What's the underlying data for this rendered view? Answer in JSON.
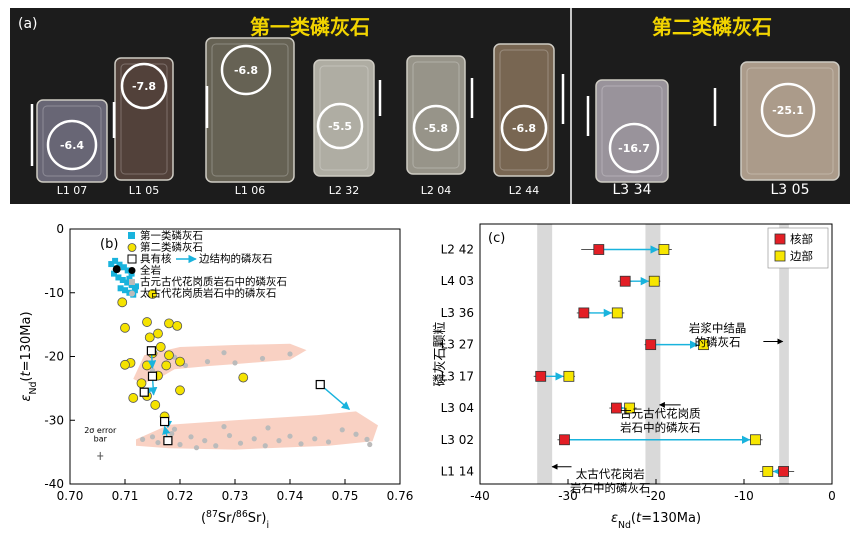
{
  "panel_a": {
    "label": "(a)",
    "group1_title": "第一类磷灰石",
    "group2_title": "第二类磷灰石",
    "group1_color": "#f2d400",
    "group2_color": "#f2d400",
    "grains": [
      {
        "name": "L1 07",
        "value": "-6.4",
        "group": 1
      },
      {
        "name": "L1 05",
        "value": "-7.8",
        "group": 1
      },
      {
        "name": "L1 06",
        "value": "-6.8",
        "group": 1
      },
      {
        "name": "L2 32",
        "value": "-5.5",
        "group": 1
      },
      {
        "name": "L2 04",
        "value": "-5.8",
        "group": 1
      },
      {
        "name": "L2 44",
        "value": "-6.8",
        "group": 1
      },
      {
        "name": "L3 34",
        "value": "-16.7",
        "group": 2
      },
      {
        "name": "L3 05",
        "value": "-25.1",
        "group": 2
      }
    ]
  },
  "chart_data": [
    {
      "panel": "(b)",
      "type": "scatter",
      "xlabel_parts": [
        "(",
        "87",
        "Sr/",
        "86",
        "Sr)",
        "i"
      ],
      "ylabel_parts": [
        "ε",
        "Nd",
        "(",
        "t",
        "=130Ma)"
      ],
      "xlim": [
        0.7,
        0.76
      ],
      "ylim": [
        -40,
        0
      ],
      "xticks": [
        "0.70",
        "0.71",
        "0.72",
        "0.73",
        "0.74",
        "0.75",
        "0.76"
      ],
      "yticks": [
        "0",
        "-10",
        "-20",
        "-30",
        "-40"
      ],
      "legend": [
        "第一类磷灰石",
        "第二类磷灰石",
        "具有核",
        "边结构的磷灰石",
        "全岩",
        "古元古代花岗质岩石中的磷灰石",
        "太古代花岗质岩石中的磷灰石"
      ],
      "colors": {
        "type1": "#19b3dd",
        "type2": "#f5e300",
        "arrow": "#19b3dd",
        "field": "#f7c6b4",
        "grey": "#bbbbbb"
      },
      "error_bar_label": [
        "2σ error",
        "bar"
      ],
      "type1_points": [
        [
          0.7075,
          -5.5
        ],
        [
          0.7082,
          -5.0
        ],
        [
          0.709,
          -5.6
        ],
        [
          0.7098,
          -6.0
        ],
        [
          0.7105,
          -6.5
        ],
        [
          0.7112,
          -7.0
        ],
        [
          0.708,
          -7.0
        ],
        [
          0.7088,
          -7.6
        ],
        [
          0.7096,
          -8.0
        ],
        [
          0.7104,
          -8.4
        ],
        [
          0.7112,
          -8.8
        ],
        [
          0.712,
          -9.0
        ],
        [
          0.7092,
          -9.3
        ],
        [
          0.71,
          -9.6
        ],
        [
          0.7108,
          -10.0
        ],
        [
          0.7115,
          -10.3
        ],
        [
          0.7085,
          -6.2
        ],
        [
          0.7108,
          -7.8
        ],
        [
          0.7118,
          -9.6
        ]
      ],
      "type2_points": [
        [
          0.7095,
          -11.5
        ],
        [
          0.715,
          -10.2
        ],
        [
          0.714,
          -14.6
        ],
        [
          0.71,
          -15.5
        ],
        [
          0.718,
          -14.8
        ],
        [
          0.7195,
          -15.2
        ],
        [
          0.716,
          -16.4
        ],
        [
          0.7145,
          -17.0
        ],
        [
          0.7165,
          -18.5
        ],
        [
          0.718,
          -19.8
        ],
        [
          0.715,
          -19.5
        ],
        [
          0.711,
          -21.0
        ],
        [
          0.71,
          -21.3
        ],
        [
          0.714,
          -21.4
        ],
        [
          0.7175,
          -21.4
        ],
        [
          0.72,
          -20.8
        ],
        [
          0.7315,
          -23.3
        ],
        [
          0.716,
          -23.0
        ],
        [
          0.713,
          -24.2
        ],
        [
          0.72,
          -25.3
        ],
        [
          0.714,
          -26.2
        ],
        [
          0.7115,
          -26.5
        ],
        [
          0.7155,
          -27.6
        ],
        [
          0.7172,
          -29.4
        ]
      ],
      "whole_rock": [
        [
          0.7085,
          -6.3
        ]
      ],
      "core_rim_pairs": [
        {
          "core": [
            0.7148,
            -19.1
          ],
          "rim": [
            0.715,
            -21.8
          ]
        },
        {
          "core": [
            0.715,
            -23.1
          ],
          "rim": [
            0.7152,
            -26.0
          ]
        },
        {
          "core": [
            0.7135,
            -25.6
          ],
          "rim": [
            0.715,
            -25.1
          ]
        },
        {
          "core": [
            0.7172,
            -30.2
          ],
          "rim": [
            0.717,
            -30.1
          ]
        },
        {
          "core": [
            0.7178,
            -33.2
          ],
          "rim": [
            0.7172,
            -31.0
          ]
        },
        {
          "core": [
            0.7455,
            -24.4
          ],
          "rim": [
            0.7508,
            -28.3
          ]
        }
      ],
      "paleo_field": [
        [
          0.7115,
          -23.5
        ],
        [
          0.7135,
          -19.8
        ],
        [
          0.72,
          -18.5
        ],
        [
          0.73,
          -18.2
        ],
        [
          0.74,
          -18.0
        ],
        [
          0.743,
          -19.0
        ],
        [
          0.74,
          -20.5
        ],
        [
          0.73,
          -21.2
        ],
        [
          0.725,
          -21.5
        ],
        [
          0.719,
          -22.0
        ],
        [
          0.716,
          -23.5
        ],
        [
          0.713,
          -24.2
        ]
      ],
      "archean_field": [
        [
          0.712,
          -33.0
        ],
        [
          0.718,
          -30.7
        ],
        [
          0.73,
          -30.0
        ],
        [
          0.745,
          -29.2
        ],
        [
          0.752,
          -28.6
        ],
        [
          0.756,
          -30.8
        ],
        [
          0.755,
          -33.3
        ],
        [
          0.747,
          -34.0
        ],
        [
          0.73,
          -34.6
        ],
        [
          0.718,
          -34.4
        ],
        [
          0.712,
          -34.0
        ]
      ],
      "paleo_points": [
        [
          0.715,
          -22.2
        ],
        [
          0.721,
          -21.4
        ],
        [
          0.725,
          -20.8
        ],
        [
          0.73,
          -21.0
        ],
        [
          0.735,
          -20.3
        ],
        [
          0.74,
          -19.6
        ],
        [
          0.719,
          -20.1
        ],
        [
          0.728,
          -19.4
        ]
      ],
      "archean_points": [
        [
          0.7132,
          -33.0
        ],
        [
          0.715,
          -32.6
        ],
        [
          0.716,
          -33.5
        ],
        [
          0.7185,
          -32.1
        ],
        [
          0.72,
          -33.8
        ],
        [
          0.722,
          -32.6
        ],
        [
          0.7245,
          -33.2
        ],
        [
          0.7265,
          -34.0
        ],
        [
          0.729,
          -32.4
        ],
        [
          0.731,
          -33.6
        ],
        [
          0.7335,
          -32.9
        ],
        [
          0.7355,
          -34.0
        ],
        [
          0.738,
          -33.2
        ],
        [
          0.74,
          -32.5
        ],
        [
          0.742,
          -33.7
        ],
        [
          0.7445,
          -32.9
        ],
        [
          0.747,
          -33.4
        ],
        [
          0.7495,
          -31.5
        ],
        [
          0.752,
          -32.2
        ],
        [
          0.754,
          -33.0
        ],
        [
          0.7545,
          -33.8
        ],
        [
          0.736,
          -31.2
        ],
        [
          0.728,
          -31.0
        ],
        [
          0.719,
          -31.4
        ],
        [
          0.723,
          -34.3
        ]
      ]
    },
    {
      "panel": "(c)",
      "type": "dot-errorbar",
      "ylabel": "磷灰石颗粒",
      "xlabel_parts": [
        "ε",
        "Nd",
        "(",
        "t",
        "=130Ma)"
      ],
      "xlim": [
        -40,
        0
      ],
      "xticks": [
        "-40",
        "-30",
        "-20",
        "-10",
        "0"
      ],
      "categories": [
        "L2 42",
        "L4 03",
        "L3 36",
        "L3 27",
        "L3 17",
        "L3 04",
        "L3 02",
        "L1 14"
      ],
      "core": [
        -26.5,
        -23.5,
        -28.2,
        -20.6,
        -33.1,
        -24.5,
        -30.4,
        -5.5
      ],
      "core_err": [
        2.0,
        0.8,
        0.8,
        0.7,
        0.8,
        0.8,
        0.8,
        1.2
      ],
      "rim": [
        -19.1,
        -20.2,
        -24.4,
        -14.6,
        -29.9,
        -23.0,
        -8.7,
        -7.3
      ],
      "rim_err": [
        0.9,
        0.7,
        0.8,
        0.6,
        0.7,
        0.8,
        0.8,
        0.9
      ],
      "legend": [
        "核部",
        "边部"
      ],
      "colors": {
        "core": "#e31e25",
        "rim": "#f7e600",
        "arrow": "#19b3dd",
        "band": "#d9d9d9"
      },
      "bands": [
        [
          -33.5,
          -31.8
        ],
        [
          -21.2,
          -19.5
        ],
        [
          -6.0,
          -4.9
        ]
      ],
      "annotations": [
        {
          "lines": [
            "岩浆中结晶",
            "的磷灰石"
          ],
          "x": -13.0,
          "y": 2.6
        },
        {
          "lines": [
            "古元古代花岗质",
            "岩石中的磷灰石"
          ],
          "x": -19.5,
          "y": 5.3
        },
        {
          "lines": [
            "太古代花岗岩",
            "岩石中的磷灰石"
          ],
          "x": -25.2,
          "y": 7.2
        }
      ]
    }
  ]
}
